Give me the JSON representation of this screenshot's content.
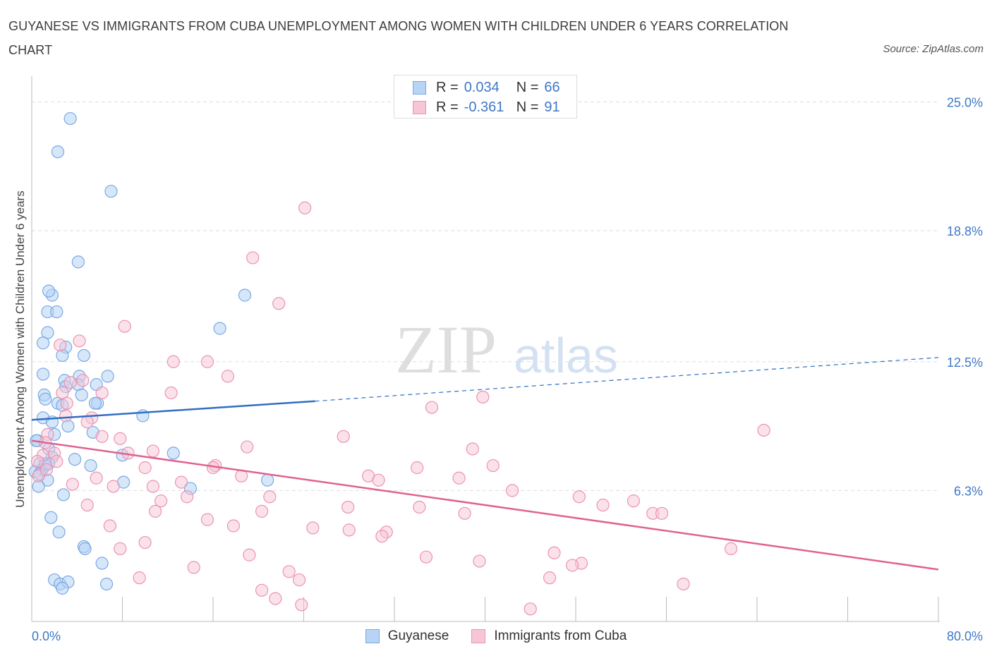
{
  "title": "GUYANESE VS IMMIGRANTS FROM CUBA UNEMPLOYMENT AMONG WOMEN WITH CHILDREN UNDER 6 YEARS CORRELATION CHART",
  "source": "Source: ZipAtlas.com",
  "watermark": {
    "zip": "ZIP",
    "atlas": "atlas"
  },
  "legend_stats": [
    {
      "r_label": "R =",
      "r_value": "0.034",
      "n_label": "N =",
      "n_value": "66"
    },
    {
      "r_label": "R =",
      "r_value": "-0.361",
      "n_label": "N =",
      "n_value": "91"
    }
  ],
  "legend": [
    "Guyanese",
    "Immigrants from Cuba"
  ],
  "colors": {
    "guyanese_fill": "#b7d3f5",
    "guyanese_stroke": "#7aa9e3",
    "guyanese_line": "#2f6fc4",
    "cuba_fill": "#f7c6d6",
    "cuba_stroke": "#eb93b1",
    "cuba_line": "#e0628f",
    "tick_label": "#3e78c7",
    "grid": "#dddddd"
  },
  "chart_data": {
    "type": "scatter",
    "title": "GUYANESE VS IMMIGRANTS FROM CUBA UNEMPLOYMENT AMONG WOMEN WITH CHILDREN UNDER 6 YEARS CORRELATION CHART",
    "xlabel": "",
    "ylabel": "Unemployment Among Women with Children Under 6 years",
    "xlim": [
      0,
      80
    ],
    "ylim": [
      0,
      25.9
    ],
    "x_tick_labels": [
      "0.0%",
      "80.0%"
    ],
    "y_ticks": [
      6.3,
      12.5,
      18.8,
      25.0
    ],
    "y_tick_labels": [
      "6.3%",
      "12.5%",
      "18.8%",
      "25.0%"
    ],
    "grid": "horizontal dashed",
    "legend_position": "bottom",
    "series": [
      {
        "name": "Guyanese",
        "trend": {
          "x": [
            0,
            25
          ],
          "y": [
            9.7,
            10.6
          ],
          "dashed_extension": {
            "x": [
              25,
              80
            ],
            "y": [
              10.6,
              12.7
            ]
          }
        },
        "points": [
          [
            3.4,
            24.2
          ],
          [
            2.3,
            22.6
          ],
          [
            7.0,
            20.7
          ],
          [
            4.1,
            17.3
          ],
          [
            1.8,
            15.7
          ],
          [
            1.5,
            15.9
          ],
          [
            18.8,
            15.7
          ],
          [
            1.4,
            14.9
          ],
          [
            2.2,
            14.9
          ],
          [
            16.6,
            14.1
          ],
          [
            1.4,
            13.9
          ],
          [
            1.0,
            13.4
          ],
          [
            3.0,
            13.2
          ],
          [
            2.7,
            12.8
          ],
          [
            4.6,
            12.8
          ],
          [
            1.0,
            11.9
          ],
          [
            6.7,
            11.8
          ],
          [
            4.2,
            11.8
          ],
          [
            2.9,
            11.6
          ],
          [
            3.0,
            11.3
          ],
          [
            5.7,
            11.4
          ],
          [
            4.1,
            11.4
          ],
          [
            1.1,
            10.9
          ],
          [
            1.2,
            10.7
          ],
          [
            4.4,
            10.9
          ],
          [
            2.3,
            10.5
          ],
          [
            2.7,
            10.4
          ],
          [
            5.8,
            10.5
          ],
          [
            5.6,
            10.5
          ],
          [
            9.8,
            9.9
          ],
          [
            1.0,
            9.8
          ],
          [
            1.8,
            9.6
          ],
          [
            3.2,
            9.4
          ],
          [
            5.4,
            9.1
          ],
          [
            2.0,
            9.0
          ],
          [
            0.5,
            8.7
          ],
          [
            1.5,
            8.3
          ],
          [
            8.0,
            8.0
          ],
          [
            12.5,
            8.1
          ],
          [
            1.8,
            7.9
          ],
          [
            3.8,
            7.8
          ],
          [
            0.7,
            7.6
          ],
          [
            1.2,
            7.5
          ],
          [
            5.2,
            7.5
          ],
          [
            0.9,
            7.3
          ],
          [
            0.3,
            7.2
          ],
          [
            0.7,
            7.1
          ],
          [
            1.4,
            6.8
          ],
          [
            8.1,
            6.7
          ],
          [
            20.8,
            6.8
          ],
          [
            0.6,
            6.5
          ],
          [
            14.0,
            6.4
          ],
          [
            2.8,
            6.1
          ],
          [
            1.7,
            5.0
          ],
          [
            2.4,
            4.3
          ],
          [
            4.6,
            3.6
          ],
          [
            4.7,
            3.5
          ],
          [
            6.2,
            2.8
          ],
          [
            2.0,
            2.0
          ],
          [
            2.5,
            1.8
          ],
          [
            3.2,
            1.9
          ],
          [
            6.6,
            1.8
          ],
          [
            2.7,
            1.6
          ],
          [
            1.2,
            7.6
          ],
          [
            0.4,
            8.7
          ],
          [
            1.5,
            7.6
          ]
        ]
      },
      {
        "name": "Immigrants from Cuba",
        "trend": {
          "x": [
            0,
            80
          ],
          "y": [
            8.7,
            2.5
          ]
        },
        "points": [
          [
            24.1,
            19.9
          ],
          [
            19.5,
            17.5
          ],
          [
            21.8,
            15.3
          ],
          [
            8.2,
            14.2
          ],
          [
            4.2,
            13.5
          ],
          [
            2.5,
            13.3
          ],
          [
            12.5,
            12.5
          ],
          [
            15.5,
            12.5
          ],
          [
            17.3,
            11.8
          ],
          [
            4.5,
            11.6
          ],
          [
            3.4,
            11.5
          ],
          [
            6.2,
            11.0
          ],
          [
            2.7,
            11.0
          ],
          [
            12.3,
            11.0
          ],
          [
            39.8,
            10.8
          ],
          [
            3.1,
            10.5
          ],
          [
            35.3,
            10.3
          ],
          [
            3.0,
            9.9
          ],
          [
            5.3,
            9.8
          ],
          [
            4.9,
            9.6
          ],
          [
            64.6,
            9.2
          ],
          [
            1.4,
            9.0
          ],
          [
            27.5,
            8.9
          ],
          [
            6.2,
            8.9
          ],
          [
            7.8,
            8.8
          ],
          [
            19.0,
            8.4
          ],
          [
            38.9,
            8.3
          ],
          [
            1.0,
            8.0
          ],
          [
            2.0,
            8.1
          ],
          [
            10.7,
            8.2
          ],
          [
            8.5,
            8.1
          ],
          [
            0.5,
            7.7
          ],
          [
            2.2,
            7.7
          ],
          [
            16.2,
            7.5
          ],
          [
            10.0,
            7.4
          ],
          [
            34.0,
            7.4
          ],
          [
            40.7,
            7.5
          ],
          [
            16.0,
            7.4
          ],
          [
            29.7,
            7.0
          ],
          [
            0.6,
            7.0
          ],
          [
            1.3,
            7.3
          ],
          [
            5.7,
            6.9
          ],
          [
            18.5,
            7.0
          ],
          [
            37.7,
            6.9
          ],
          [
            30.6,
            6.8
          ],
          [
            13.2,
            6.7
          ],
          [
            3.6,
            6.6
          ],
          [
            10.7,
            6.5
          ],
          [
            7.2,
            6.5
          ],
          [
            42.4,
            6.3
          ],
          [
            21.0,
            6.0
          ],
          [
            11.4,
            5.8
          ],
          [
            13.7,
            6.0
          ],
          [
            48.3,
            6.0
          ],
          [
            53.1,
            5.8
          ],
          [
            4.9,
            5.6
          ],
          [
            27.9,
            5.5
          ],
          [
            34.2,
            5.5
          ],
          [
            50.4,
            5.6
          ],
          [
            10.9,
            5.3
          ],
          [
            20.3,
            5.3
          ],
          [
            38.2,
            5.2
          ],
          [
            54.8,
            5.2
          ],
          [
            55.6,
            5.2
          ],
          [
            15.5,
            4.9
          ],
          [
            6.9,
            4.6
          ],
          [
            17.8,
            4.6
          ],
          [
            24.8,
            4.5
          ],
          [
            28.0,
            4.4
          ],
          [
            31.3,
            4.3
          ],
          [
            30.9,
            4.1
          ],
          [
            10.0,
            3.8
          ],
          [
            7.8,
            3.5
          ],
          [
            61.7,
            3.5
          ],
          [
            46.1,
            3.3
          ],
          [
            19.2,
            3.2
          ],
          [
            34.8,
            3.1
          ],
          [
            39.5,
            2.9
          ],
          [
            48.5,
            2.8
          ],
          [
            47.7,
            2.7
          ],
          [
            14.3,
            2.6
          ],
          [
            22.7,
            2.4
          ],
          [
            9.5,
            2.1
          ],
          [
            23.6,
            2.0
          ],
          [
            45.7,
            2.1
          ],
          [
            57.5,
            1.8
          ],
          [
            20.3,
            1.5
          ],
          [
            21.5,
            1.1
          ],
          [
            23.8,
            0.8
          ],
          [
            44.0,
            0.6
          ],
          [
            1.2,
            8.6
          ]
        ]
      }
    ]
  }
}
